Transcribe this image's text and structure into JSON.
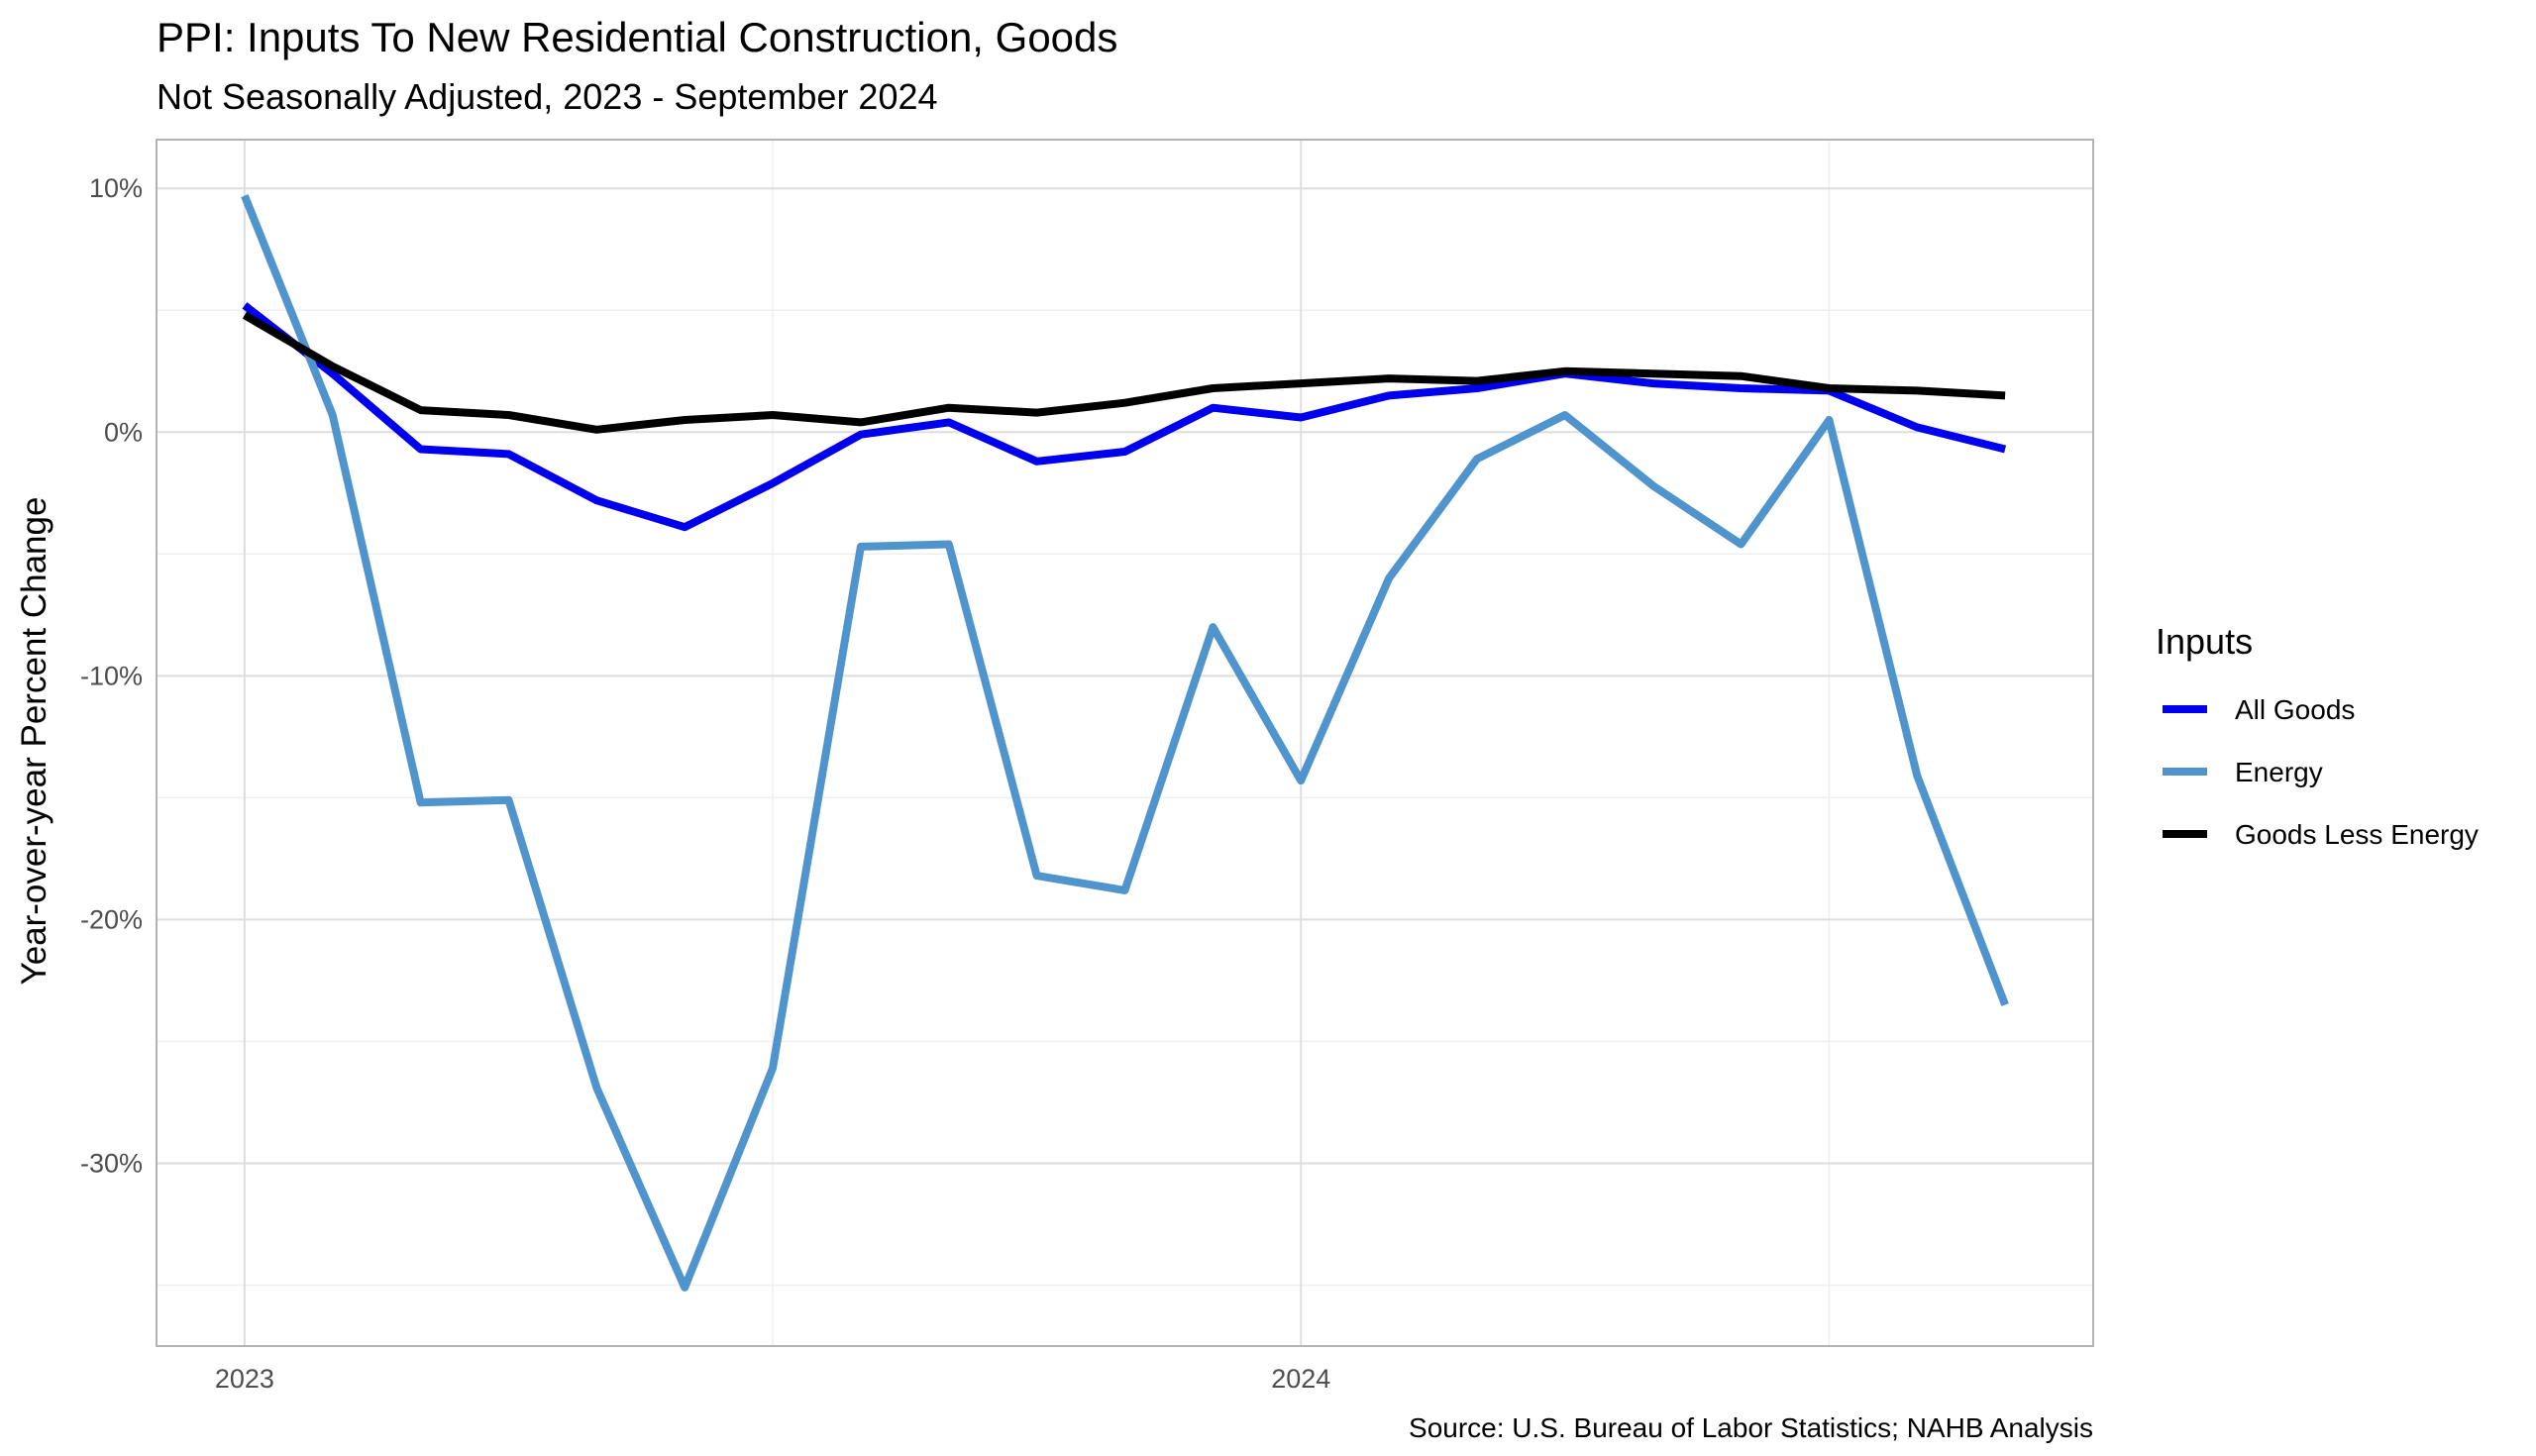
{
  "chart_data": {
    "type": "line",
    "title": "PPI: Inputs To New Residential Construction, Goods",
    "subtitle": "Not Seasonally Adjusted, 2023 - September 2024",
    "ylabel": "Year-over-year Percent Change",
    "xlabel": "",
    "caption": "Source: U.S. Bureau of Labor Statistics; NAHB Analysis",
    "legend": {
      "title": "Inputs",
      "position": "right"
    },
    "grid": true,
    "xlim": [
      "2022-12",
      "2024-10"
    ],
    "ylim": [
      -37.5,
      12
    ],
    "y_ticks": [
      10,
      0,
      -10,
      -20,
      -30
    ],
    "y_tick_labels": [
      "10%",
      "0%",
      "-10%",
      "-20%",
      "-30%"
    ],
    "x_tick_labels": [
      "2023",
      "2024"
    ],
    "x": [
      "2023-01",
      "2023-02",
      "2023-03",
      "2023-04",
      "2023-05",
      "2023-06",
      "2023-07",
      "2023-08",
      "2023-09",
      "2023-10",
      "2023-11",
      "2023-12",
      "2024-01",
      "2024-02",
      "2024-03",
      "2024-04",
      "2024-05",
      "2024-06",
      "2024-07",
      "2024-08",
      "2024-09"
    ],
    "series": [
      {
        "name": "All Goods",
        "color": "#0000ee",
        "values": [
          5.2,
          2.4,
          -0.7,
          -0.9,
          -2.8,
          -3.9,
          -2.1,
          -0.1,
          0.4,
          -1.2,
          -0.8,
          1.0,
          0.6,
          1.5,
          1.8,
          2.4,
          2.0,
          1.8,
          1.7,
          0.2,
          -0.7
        ]
      },
      {
        "name": "Energy",
        "color": "#4f94cd",
        "values": [
          9.7,
          0.7,
          -15.2,
          -15.1,
          -26.9,
          -35.1,
          -26.1,
          -4.7,
          -4.6,
          -18.2,
          -18.8,
          -8.0,
          -14.3,
          -6.0,
          -1.1,
          0.7,
          -2.2,
          -4.6,
          0.5,
          -14.1,
          -23.5
        ]
      },
      {
        "name": "Goods Less Energy",
        "color": "#000000",
        "values": [
          4.8,
          2.7,
          0.9,
          0.7,
          0.1,
          0.5,
          0.7,
          0.4,
          1.0,
          0.8,
          1.2,
          1.8,
          2.0,
          2.2,
          2.1,
          2.5,
          2.4,
          2.3,
          1.8,
          1.7,
          1.5
        ]
      }
    ]
  }
}
